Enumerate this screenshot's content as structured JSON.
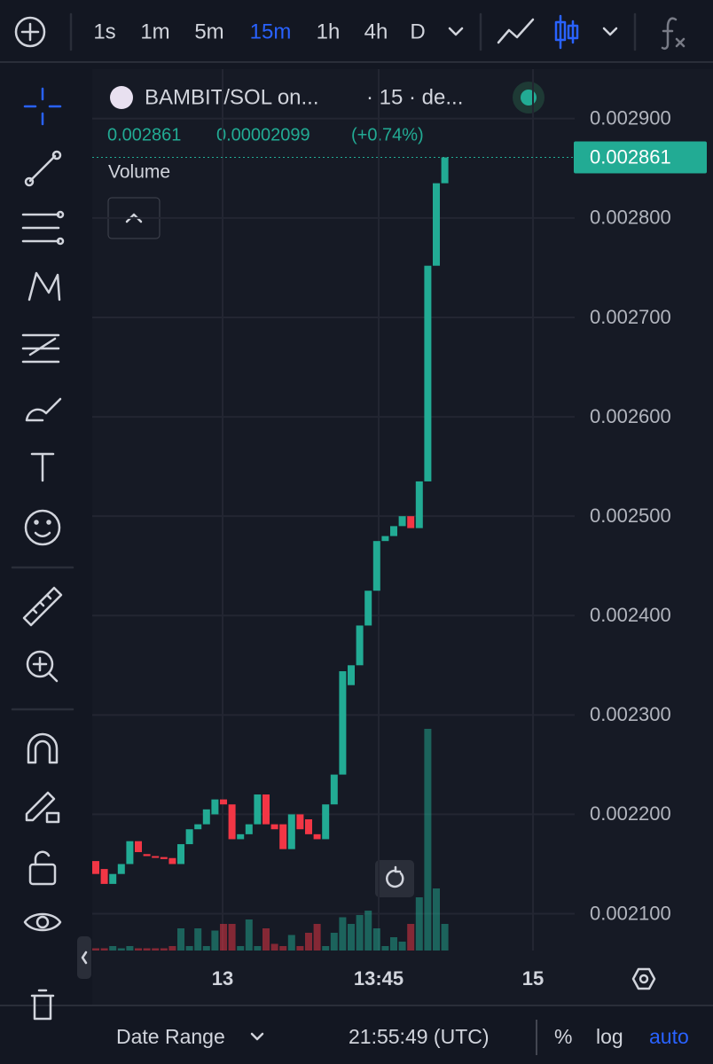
{
  "toolbar": {
    "intervals": [
      "1s",
      "1m",
      "5m",
      "15m",
      "1h",
      "4h",
      "D"
    ],
    "active": "15m"
  },
  "chart_data": {
    "type": "candlestick",
    "symbol": "BAMBIT/SOL on...",
    "interval": "· 15 · de...",
    "last": "0.002861",
    "change": "0.00002099",
    "change_pct": "(+0.74%)",
    "volume_label": "Volume",
    "up_color": "#22ab94",
    "down_color": "#f23645",
    "open": [
      0.002153,
      0.002145,
      0.00213,
      0.00214,
      0.00215,
      0.002173,
      0.00216,
      0.002158,
      0.002157,
      0.002156,
      0.00215,
      0.00217,
      0.002185,
      0.00219,
      0.0022,
      0.002215,
      0.00221,
      0.002175,
      0.00218,
      0.00219,
      0.00222,
      0.00219,
      0.00219,
      0.002165,
      0.0022,
      0.002195,
      0.00218,
      0.002175,
      0.00221,
      0.00224,
      0.00233,
      0.00235,
      0.00239,
      0.002425,
      0.002475,
      0.00248,
      0.00249,
      0.0025,
      0.002488,
      0.002535,
      0.002752,
      0.002835
    ],
    "close": [
      0.00214,
      0.00213,
      0.00214,
      0.00215,
      0.002173,
      0.002162,
      0.002158,
      0.002157,
      0.002155,
      0.00215,
      0.00217,
      0.002185,
      0.00219,
      0.002205,
      0.002215,
      0.00221,
      0.002175,
      0.00218,
      0.00219,
      0.00222,
      0.00219,
      0.002185,
      0.002165,
      0.0022,
      0.002185,
      0.00218,
      0.002175,
      0.00221,
      0.00224,
      0.002344,
      0.00235,
      0.00239,
      0.002425,
      0.002475,
      0.00248,
      0.00249,
      0.0025,
      0.002488,
      0.002535,
      0.002752,
      0.002835,
      0.002861
    ],
    "volume": [
      1,
      1,
      2,
      1,
      2,
      1,
      1,
      1,
      1,
      2,
      10,
      2,
      10,
      2,
      9,
      12,
      12,
      2,
      14,
      2,
      10,
      3,
      2,
      7,
      2,
      8,
      12,
      2,
      8,
      15,
      12,
      16,
      18,
      10,
      2,
      6,
      4,
      12,
      24,
      100,
      28,
      12
    ],
    "ylim": [
      0.002063,
      0.002948
    ],
    "yticks": [
      {
        "value": 0.0029,
        "label": "0.002900"
      },
      {
        "value": 0.0028,
        "label": "0.002800"
      },
      {
        "value": 0.0027,
        "label": "0.002700"
      },
      {
        "value": 0.0026,
        "label": "0.002600"
      },
      {
        "value": 0.0025,
        "label": "0.002500"
      },
      {
        "value": 0.0024,
        "label": "0.002400"
      },
      {
        "value": 0.0023,
        "label": "0.002300"
      },
      {
        "value": 0.0022,
        "label": "0.002200"
      },
      {
        "value": 0.0021,
        "label": "0.002100"
      }
    ],
    "last_price": 0.002861,
    "time_labels": [
      "13",
      "13:45",
      "15"
    ]
  },
  "footer": {
    "date_range": "Date Range",
    "clock": "21:55:49 (UTC)",
    "percent": "%",
    "log": "log",
    "auto": "auto"
  }
}
